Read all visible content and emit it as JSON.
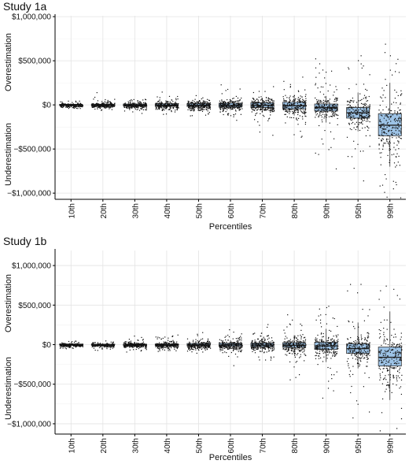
{
  "chart_data": [
    {
      "type": "scatter",
      "title": "Study 1a",
      "xlabel": "Percentiles",
      "ylabel_top": "Overestimation",
      "ylabel_bottom": "Underestimation",
      "categories": [
        "10th",
        "20th",
        "30th",
        "40th",
        "50th",
        "60th",
        "70th",
        "80th",
        "90th",
        "95th",
        "99th"
      ],
      "yticks": [
        {
          "value": 1000000,
          "label": "$1,000,000"
        },
        {
          "value": 500000,
          "label": "$500,000"
        },
        {
          "value": 0,
          "label": "$0"
        },
        {
          "value": -500000,
          "label": "−$500,000"
        },
        {
          "value": -1000000,
          "label": "−$1,000,000"
        }
      ],
      "ylim": [
        -1070000,
        1010000
      ],
      "grid": true,
      "box_color": "#9DC3E6",
      "boxes": [
        {
          "category": "10th",
          "q1": -7000,
          "median": 0,
          "q3": 7000,
          "whisker_low": -12000,
          "whisker_high": 12000,
          "spread": 20000
        },
        {
          "category": "20th",
          "q1": -10000,
          "median": 0,
          "q3": 8000,
          "whisker_low": -20000,
          "whisker_high": 20000,
          "spread": 35000
        },
        {
          "category": "30th",
          "q1": -12000,
          "median": -3000,
          "q3": 10000,
          "whisker_low": -30000,
          "whisker_high": 25000,
          "spread": 45000
        },
        {
          "category": "40th",
          "q1": -15000,
          "median": -5000,
          "q3": 12000,
          "whisker_low": -40000,
          "whisker_high": 35000,
          "spread": 55000
        },
        {
          "category": "50th",
          "q1": -18000,
          "median": -5000,
          "q3": 15000,
          "whisker_low": -50000,
          "whisker_high": 45000,
          "spread": 65000
        },
        {
          "category": "60th",
          "q1": -25000,
          "median": -5000,
          "q3": 20000,
          "whisker_low": -60000,
          "whisker_high": 60000,
          "spread": 80000
        },
        {
          "category": "70th",
          "q1": -30000,
          "median": -5000,
          "q3": 25000,
          "whisker_low": -80000,
          "whisker_high": 80000,
          "spread": 100000
        },
        {
          "category": "80th",
          "q1": -45000,
          "median": -10000,
          "q3": 30000,
          "whisker_low": -120000,
          "whisker_high": 110000,
          "spread": 140000
        },
        {
          "category": "90th",
          "q1": -70000,
          "median": -30000,
          "q3": 10000,
          "whisker_low": -200000,
          "whisker_high": 100000,
          "spread": 240000
        },
        {
          "category": "95th",
          "q1": -150000,
          "median": -90000,
          "q3": -30000,
          "whisker_low": -300000,
          "whisker_high": 140000,
          "spread": 300000
        },
        {
          "category": "99th",
          "q1": -350000,
          "median": -230000,
          "q3": -100000,
          "whisker_low": -700000,
          "whisker_high": 250000,
          "spread": 400000
        }
      ]
    },
    {
      "type": "scatter",
      "title": "Study 1b",
      "xlabel": "Percentiles",
      "ylabel_top": "Overestimation",
      "ylabel_bottom": "Underestimation",
      "categories": [
        "10th",
        "20th",
        "30th",
        "40th",
        "50th",
        "60th",
        "70th",
        "80th",
        "90th",
        "95th",
        "99th"
      ],
      "yticks": [
        {
          "value": 1000000,
          "label": "$1,000,000"
        },
        {
          "value": 500000,
          "label": "$500,000"
        },
        {
          "value": 0,
          "label": "$0"
        },
        {
          "value": -500000,
          "label": "−$500,000"
        },
        {
          "value": -1000000,
          "label": "−$1,000,000"
        }
      ],
      "ylim": [
        -1130000,
        1190000
      ],
      "grid": true,
      "box_color": "#9DC3E6",
      "boxes": [
        {
          "category": "10th",
          "q1": -5000,
          "median": 0,
          "q3": 8000,
          "whisker_low": -12000,
          "whisker_high": 15000,
          "spread": 20000
        },
        {
          "category": "20th",
          "q1": -8000,
          "median": -2000,
          "q3": 6000,
          "whisker_low": -18000,
          "whisker_high": 18000,
          "spread": 25000
        },
        {
          "category": "30th",
          "q1": -10000,
          "median": -2000,
          "q3": 8000,
          "whisker_low": -25000,
          "whisker_high": 25000,
          "spread": 35000
        },
        {
          "category": "40th",
          "q1": -12000,
          "median": -3000,
          "q3": 10000,
          "whisker_low": -35000,
          "whisker_high": 30000,
          "spread": 45000
        },
        {
          "category": "50th",
          "q1": -15000,
          "median": -3000,
          "q3": 15000,
          "whisker_low": -45000,
          "whisker_high": 45000,
          "spread": 60000
        },
        {
          "category": "60th",
          "q1": -20000,
          "median": -3000,
          "q3": 18000,
          "whisker_low": -55000,
          "whisker_high": 55000,
          "spread": 80000
        },
        {
          "category": "70th",
          "q1": -25000,
          "median": -5000,
          "q3": 20000,
          "whisker_low": -80000,
          "whisker_high": 80000,
          "spread": 110000
        },
        {
          "category": "80th",
          "q1": -35000,
          "median": -8000,
          "q3": 25000,
          "whisker_low": -120000,
          "whisker_high": 120000,
          "spread": 160000
        },
        {
          "category": "90th",
          "q1": -60000,
          "median": -15000,
          "q3": 30000,
          "whisker_low": -220000,
          "whisker_high": 200000,
          "spread": 280000
        },
        {
          "category": "95th",
          "q1": -110000,
          "median": -50000,
          "q3": 10000,
          "whisker_low": -300000,
          "whisker_high": 280000,
          "spread": 350000
        },
        {
          "category": "99th",
          "q1": -270000,
          "median": -160000,
          "q3": -30000,
          "whisker_low": -700000,
          "whisker_high": 420000,
          "spread": 450000
        }
      ]
    }
  ]
}
